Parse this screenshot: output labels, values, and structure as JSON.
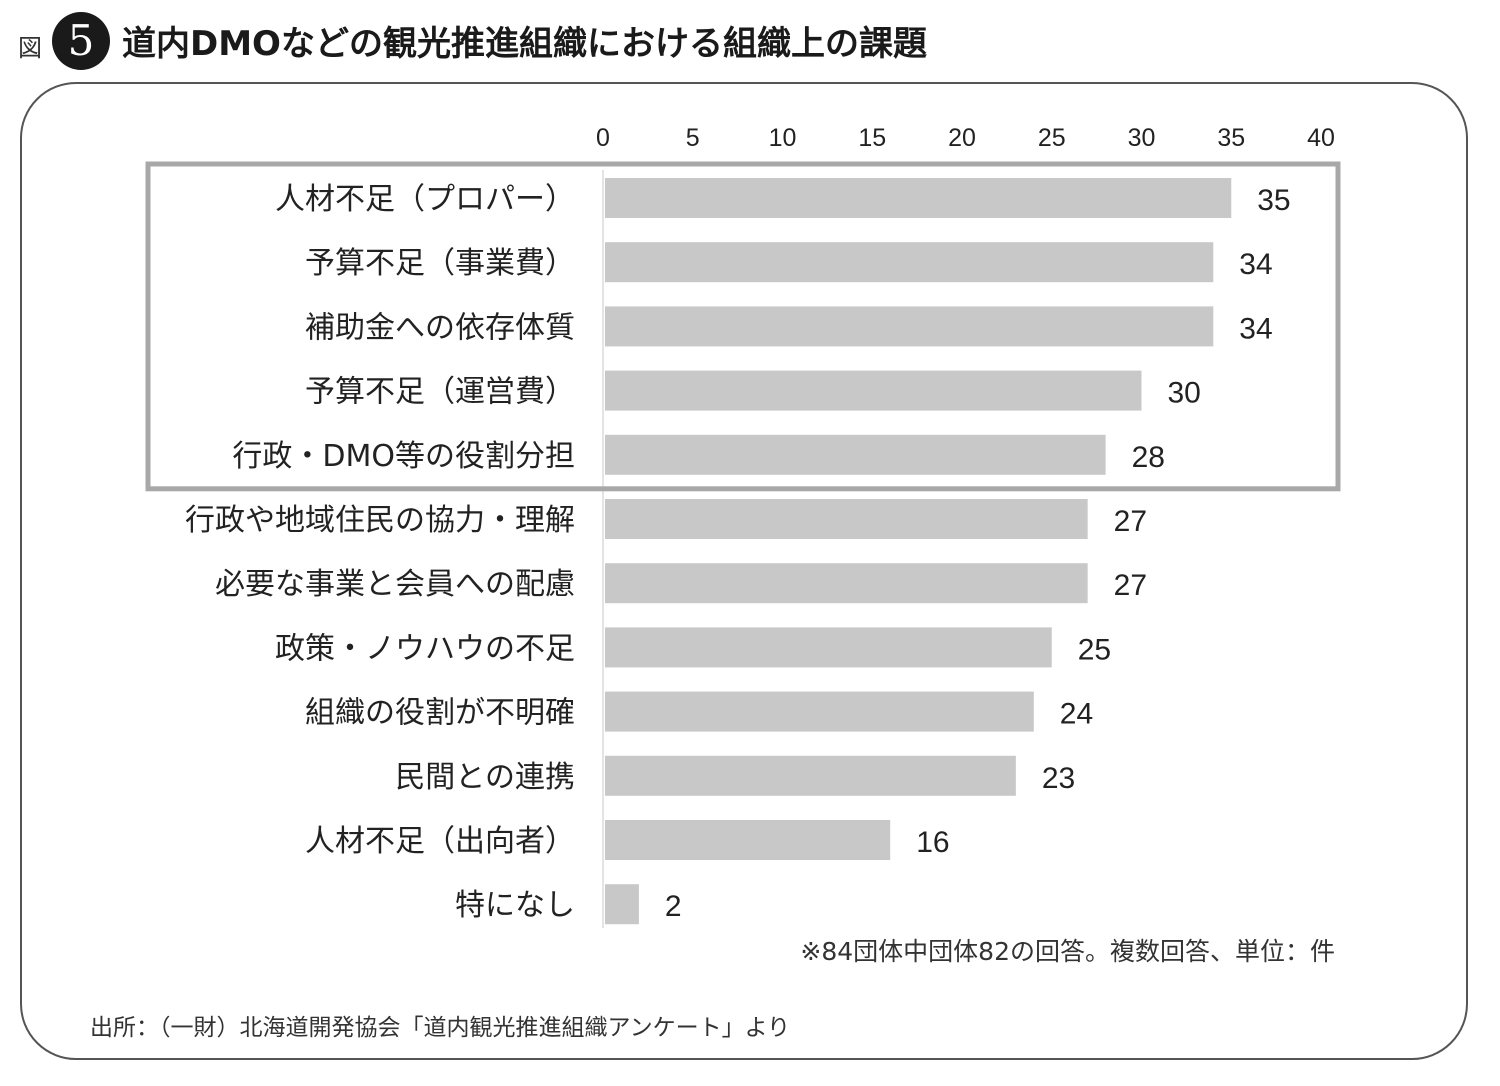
{
  "figure": {
    "prefix": "図",
    "number": "5",
    "title": "道内DMOなどの観光推進組織における組織上の課題"
  },
  "chart_data": {
    "type": "bar",
    "orientation": "horizontal",
    "categories": [
      "人材不足（プロパー）",
      "予算不足（事業費）",
      "補助金への依存体質",
      "予算不足（運営費）",
      "行政・DMO等の役割分担",
      "行政や地域住民の協力・理解",
      "必要な事業と会員への配慮",
      "政策・ノウハウの不足",
      "組織の役割が不明確",
      "民間との連携",
      "人材不足（出向者）",
      "特になし"
    ],
    "values": [
      35,
      34,
      34,
      30,
      28,
      27,
      27,
      25,
      24,
      23,
      16,
      2
    ],
    "xlim": [
      0,
      40
    ],
    "xticks": [
      0,
      5,
      10,
      15,
      20,
      25,
      30,
      35,
      40
    ],
    "axis_position": "top",
    "grid": false,
    "highlighted_categories_count": 5,
    "bar_color": "#c8c8c8",
    "highlight_box_color": "#a8a8a8",
    "note": "※84団体中団体82の回答。複数回答、単位：件"
  },
  "source": "出所：（一財）北海道開発協会「道内観光推進組織アンケート」より"
}
